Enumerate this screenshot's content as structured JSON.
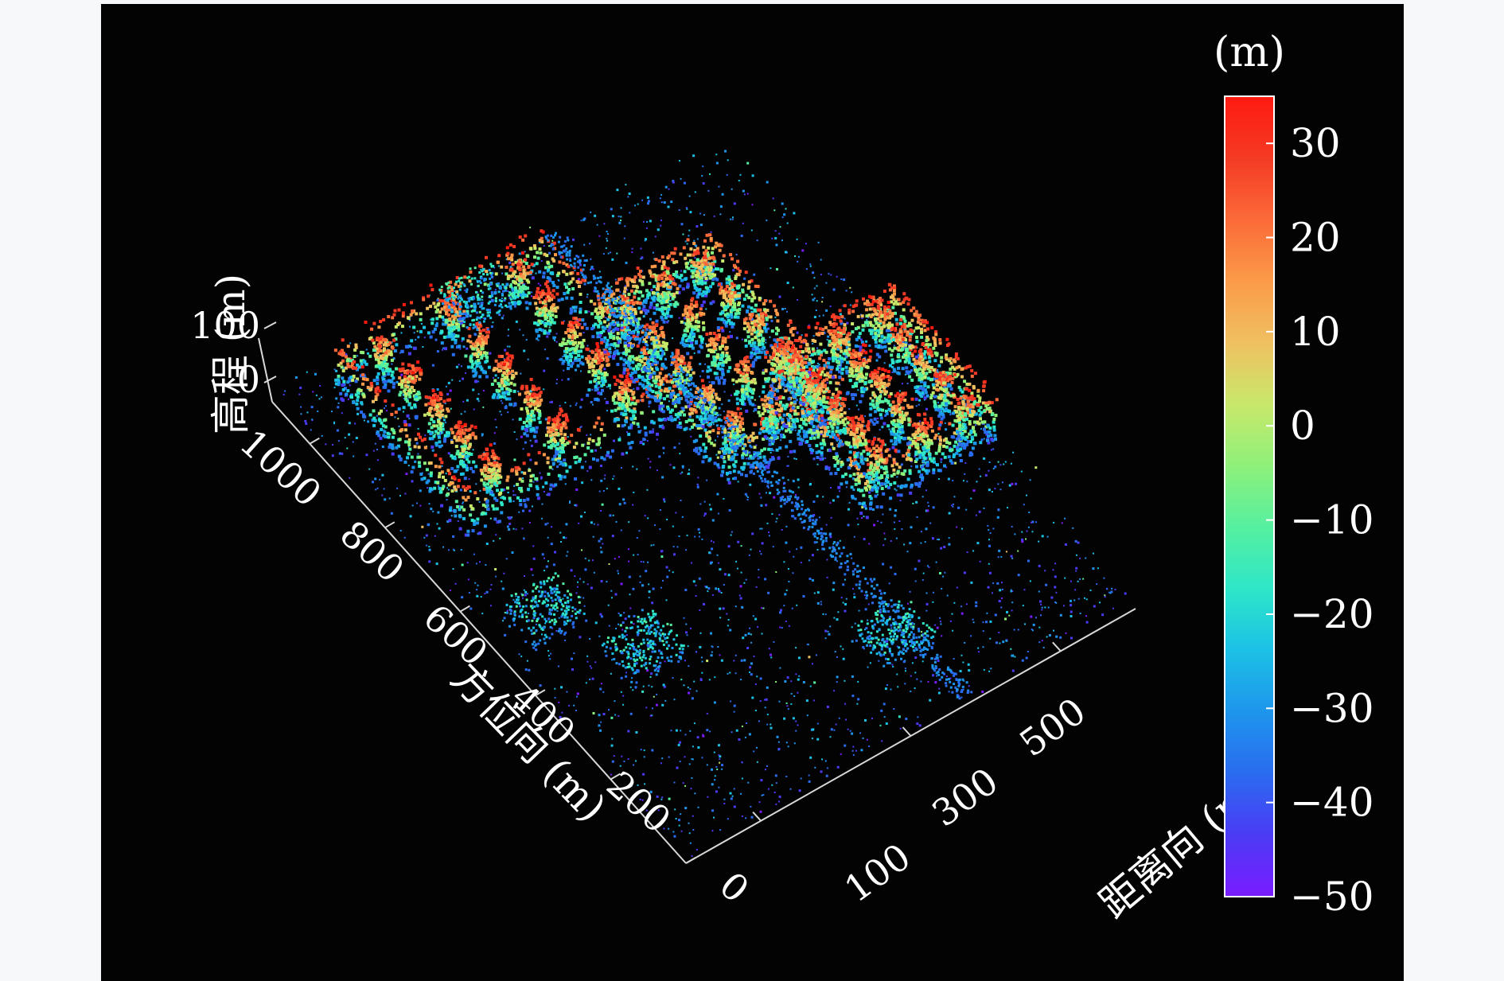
{
  "chart_data": {
    "type": "scatter3d",
    "title": "",
    "axes": {
      "azimuth": {
        "label": "方位向 (m)",
        "ticks": [
          0,
          200,
          400,
          600,
          800,
          1000
        ],
        "range": [
          0,
          1100
        ]
      },
      "range": {
        "label": "距离向 (m)",
        "ticks": [
          100,
          300,
          500
        ],
        "range": [
          0,
          600
        ]
      },
      "elevation": {
        "label": "高程 (m)",
        "ticks": [
          0,
          100
        ],
        "range": [
          -50,
          100
        ]
      }
    },
    "colorbar": {
      "unit": "(m)",
      "ticks": [
        30,
        20,
        10,
        0,
        -10,
        -20,
        -30,
        -40,
        -50
      ],
      "tick_labels": [
        "30",
        "20",
        "10",
        "0",
        "−10",
        "−20",
        "−30",
        "−40",
        "−50"
      ],
      "range": [
        -50,
        35
      ],
      "colors": [
        "#7a1cff",
        "#4b3bf5",
        "#2a6cf0",
        "#1e95ec",
        "#1cc1e6",
        "#2ee6c8",
        "#55f0a0",
        "#8ff07a",
        "#c8e86a",
        "#f0c060",
        "#fb9a48",
        "#fb6a38",
        "#f43a24",
        "#ff1a10"
      ]
    },
    "structures": [
      {
        "kind": "building-block",
        "azimuth": [
          700,
          1050
        ],
        "range": [
          60,
          330
        ],
        "height_max": 30
      },
      {
        "kind": "building-block",
        "azimuth": [
          550,
          900
        ],
        "range": [
          330,
          480
        ],
        "height_max": 25
      },
      {
        "kind": "building-block",
        "azimuth": [
          380,
          650
        ],
        "range": [
          430,
          600
        ],
        "height_max": 30
      },
      {
        "kind": "road",
        "azimuth": [
          0,
          1100
        ],
        "range": [
          360,
          380
        ],
        "height_max": -30
      }
    ]
  }
}
